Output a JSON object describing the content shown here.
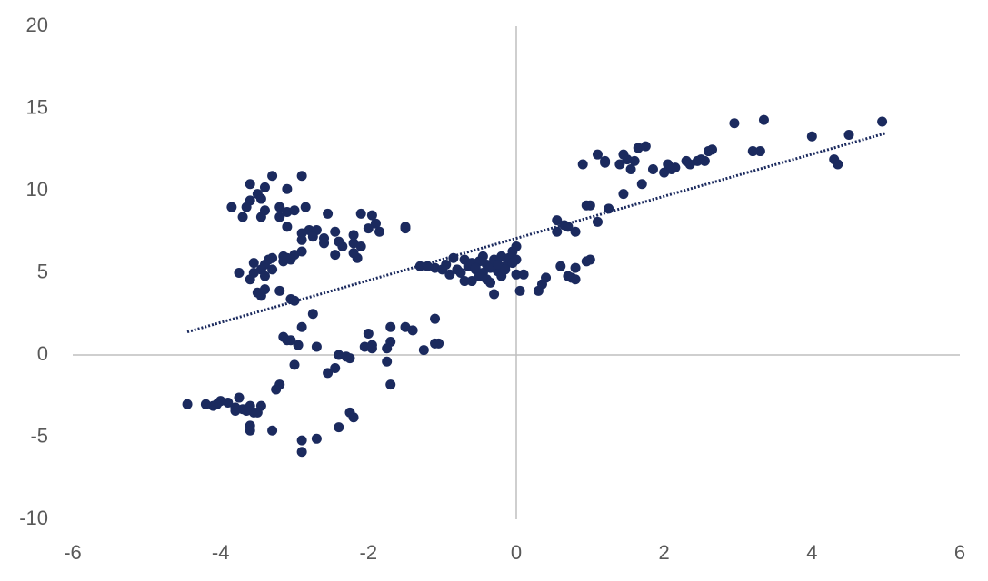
{
  "chart_data": {
    "type": "scatter",
    "color": "#1b2a5e",
    "x": [
      -3.3,
      -2.9,
      -3.6,
      -3.4,
      -3.1,
      -3.5,
      -3.45,
      -3.6,
      -3.2,
      -2.85,
      -3.65,
      -3.85,
      -3.4,
      -3.1,
      -3.0,
      -3.2,
      -3.45,
      -3.7,
      -2.55,
      -2.1,
      -1.95,
      -1.9,
      -2.0,
      -1.85,
      -2.2,
      -2.45,
      -2.8,
      -2.7,
      -2.9,
      -3.1,
      -2.6,
      -2.75,
      -2.9,
      -2.4,
      -2.2,
      -2.35,
      -2.1,
      -2.6,
      -2.45,
      -2.15,
      -2.9,
      -3.0,
      -3.15,
      -3.15,
      -3.05,
      -1.5,
      -1.5,
      -2.2,
      -3.55,
      -3.4,
      -3.3,
      -3.35,
      -3.45,
      -3.3,
      -3.55,
      -3.75,
      -3.6,
      -3.4,
      -3.4,
      -3.5,
      -3.45,
      -3.2,
      -3.05,
      -3.0,
      -3.1,
      -2.75,
      -2.9,
      -3.15,
      -3.1,
      -3.05,
      -2.95,
      -2.7,
      -3.0,
      -2.4,
      -2.25,
      -2.3,
      -2.55,
      -2.45,
      -2.05,
      -1.95,
      -1.95,
      -2.0,
      -1.7,
      -1.5,
      -1.4,
      -1.7,
      -1.75,
      -1.75,
      -1.7,
      -1.25,
      -1.1,
      -1.1,
      -1.05,
      -3.2,
      -3.25,
      -2.25,
      -2.2,
      -2.4,
      -2.9,
      -2.9,
      -2.7,
      -3.3,
      -3.6,
      -3.6,
      -3.45,
      -3.55,
      -3.6,
      -3.7,
      -3.75,
      -3.8,
      -3.8,
      -3.9,
      -4.0,
      -4.05,
      -4.1,
      -4.2,
      -4.45,
      -3.65,
      -3.5,
      -1.3,
      -1.2,
      -1.1,
      -1.0,
      -0.95,
      -0.85,
      -0.8,
      -0.75,
      -0.7,
      -0.65,
      -0.6,
      -0.55,
      -0.5,
      -0.45,
      -0.4,
      -0.35,
      -0.3,
      -0.25,
      -0.2,
      -0.15,
      -0.1,
      -0.05,
      0.0,
      0.0,
      -0.6,
      -0.5,
      -0.4,
      -0.35,
      -0.3,
      -0.2,
      -0.25,
      -0.9,
      -0.7,
      -0.15,
      0.0,
      0.05,
      0.1,
      -0.55,
      -0.45,
      -0.05,
      0.3,
      0.35,
      0.4,
      0.6,
      0.7,
      0.75,
      0.8,
      0.8,
      0.95,
      1.0,
      0.55,
      0.55,
      0.65,
      0.7,
      0.8,
      0.95,
      1.0,
      1.1,
      1.25,
      1.45,
      0.9,
      1.1,
      1.2,
      1.2,
      1.4,
      1.45,
      1.5,
      1.55,
      1.6,
      1.65,
      1.75,
      1.7,
      1.85,
      2.0,
      2.05,
      2.1,
      2.15,
      2.3,
      2.35,
      2.45,
      2.5,
      2.55,
      2.6,
      2.65,
      2.95,
      3.2,
      3.3,
      3.35,
      4.0,
      4.3,
      4.35,
      4.5,
      4.95
    ],
    "values": [
      10.9,
      10.9,
      10.4,
      10.2,
      10.1,
      9.8,
      9.5,
      9.4,
      9.0,
      9.0,
      9.0,
      9.0,
      8.8,
      8.7,
      8.8,
      8.4,
      8.4,
      8.4,
      8.6,
      8.6,
      8.5,
      8.0,
      7.7,
      7.5,
      7.3,
      7.5,
      7.6,
      7.6,
      7.4,
      7.8,
      7.1,
      7.2,
      7.0,
      6.9,
      6.8,
      6.6,
      6.6,
      6.8,
      6.1,
      5.9,
      6.3,
      6.1,
      6.0,
      5.7,
      5.8,
      7.7,
      7.8,
      6.2,
      5.6,
      5.5,
      5.9,
      5.8,
      5.2,
      5.2,
      5.0,
      5.0,
      4.6,
      4.8,
      4.0,
      3.8,
      3.6,
      3.9,
      3.4,
      3.3,
      5.9,
      2.5,
      1.7,
      1.1,
      0.9,
      0.9,
      0.6,
      0.5,
      -0.6,
      0.0,
      -0.2,
      -0.1,
      -1.1,
      -0.8,
      0.5,
      0.6,
      0.4,
      1.3,
      1.7,
      1.7,
      1.5,
      0.8,
      0.4,
      -0.4,
      -1.8,
      0.3,
      2.2,
      0.7,
      0.7,
      -1.8,
      -2.1,
      -3.5,
      -3.8,
      -4.4,
      -5.2,
      -5.9,
      -5.1,
      -4.6,
      -4.3,
      -4.6,
      -3.1,
      -3.5,
      -3.1,
      -3.3,
      -2.6,
      -3.4,
      -3.2,
      -2.9,
      -2.8,
      -3.0,
      -3.1,
      -3.0,
      -3.0,
      -3.4,
      -3.5,
      5.4,
      5.4,
      5.3,
      5.2,
      5.5,
      5.9,
      5.2,
      5.0,
      5.8,
      5.4,
      5.6,
      5.2,
      5.7,
      5.0,
      5.5,
      5.3,
      5.8,
      5.1,
      6.0,
      5.4,
      5.9,
      6.3,
      6.6,
      5.8,
      4.5,
      4.8,
      4.6,
      4.4,
      3.7,
      4.8,
      5.5,
      4.9,
      4.5,
      5.2,
      4.9,
      3.9,
      4.9,
      5.3,
      6.0,
      5.6,
      3.9,
      4.3,
      4.7,
      5.4,
      4.8,
      4.7,
      4.6,
      5.3,
      5.7,
      5.8,
      7.5,
      8.2,
      7.9,
      7.8,
      7.5,
      9.1,
      9.1,
      8.1,
      8.9,
      9.8,
      11.6,
      12.2,
      11.8,
      11.7,
      11.6,
      12.2,
      11.9,
      11.3,
      11.8,
      12.6,
      12.7,
      10.4,
      11.3,
      11.1,
      11.6,
      11.3,
      11.4,
      11.8,
      11.6,
      11.8,
      11.9,
      11.8,
      12.4,
      12.5,
      14.1,
      12.4,
      12.4,
      14.3,
      13.3,
      11.9,
      11.6,
      13.4,
      14.2
    ],
    "trendline": {
      "x": [
        -4.45,
        5
      ],
      "values": [
        1.4,
        13.5
      ],
      "color": "#1b2a5e",
      "style": "dotted"
    },
    "xlim": [
      -6,
      6
    ],
    "xticks": [
      -6,
      -4,
      -2,
      0,
      2,
      4,
      6
    ],
    "ylim": [
      -10,
      20
    ],
    "yticks": [
      -10,
      -5,
      0,
      5,
      10,
      15,
      20
    ]
  }
}
